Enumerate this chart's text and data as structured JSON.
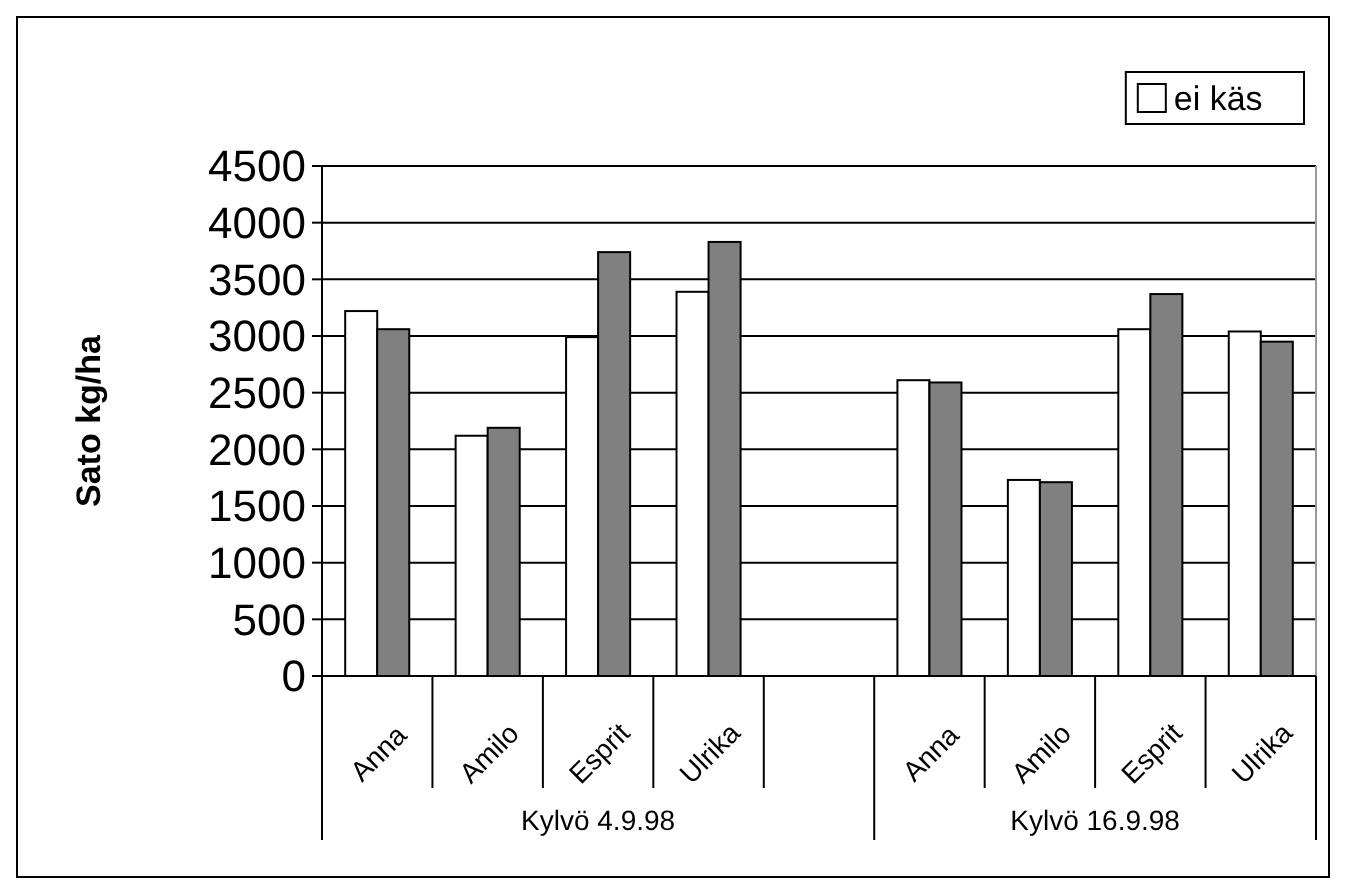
{
  "chart_data": {
    "type": "bar",
    "ylabel": "Sato kg/ha",
    "categories": [
      "Anna",
      "Amilo",
      "Esprit",
      "Ulrika",
      null,
      "Anna",
      "Amilo",
      "Esprit",
      "Ulrika"
    ],
    "series": [
      {
        "name": "ei käs",
        "color": "#ffffff",
        "values": [
          3220,
          2120,
          2990,
          3390,
          null,
          2610,
          1730,
          3060,
          3040
        ]
      },
      {
        "color": "#808080",
        "values": [
          3060,
          2190,
          3740,
          3830,
          null,
          2590,
          1710,
          3370,
          2950
        ]
      }
    ],
    "annotations": [
      "Kylvö 4.9.98",
      "Kylvö 16.9.98"
    ],
    "ylim": [
      0,
      4500
    ],
    "yticks": [
      0,
      500,
      1000,
      1500,
      2000,
      2500,
      3000,
      3500,
      4000,
      4500
    ],
    "grid": "y",
    "legend": "top right"
  }
}
